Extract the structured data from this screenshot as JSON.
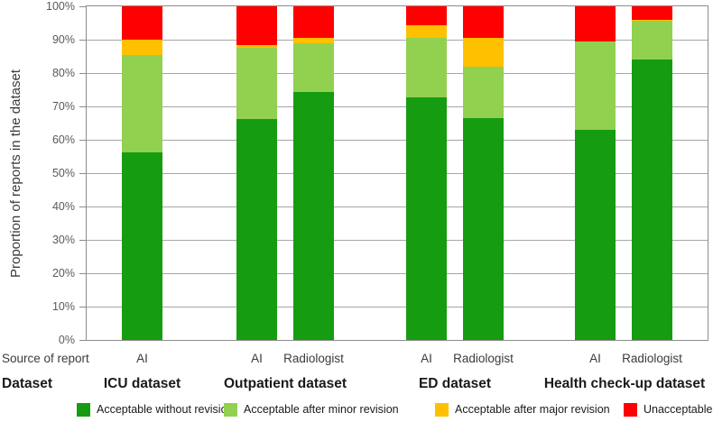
{
  "chart_data": {
    "type": "bar",
    "stacked": true,
    "title": "",
    "ylabel": "Proportion of reports in the dataset",
    "ylim": [
      0,
      100
    ],
    "ytick_labels": [
      "0%",
      "10%",
      "20%",
      "30%",
      "40%",
      "50%",
      "60%",
      "70%",
      "80%",
      "90%",
      "100%"
    ],
    "grid": true,
    "legend_position": "bottom",
    "row_headers": {
      "source": "Source of report",
      "dataset": "Dataset"
    },
    "bars": [
      {
        "dataset": "ICU dataset",
        "source": "AI"
      },
      {
        "dataset": "Outpatient dataset",
        "source": "AI"
      },
      {
        "dataset": "Outpatient dataset",
        "source": "Radiologist"
      },
      {
        "dataset": "ED dataset",
        "source": "AI"
      },
      {
        "dataset": "ED dataset",
        "source": "Radiologist"
      },
      {
        "dataset": "Health check-up dataset",
        "source": "AI"
      },
      {
        "dataset": "Health check-up dataset",
        "source": "Radiologist"
      }
    ],
    "groups": [
      {
        "label": "ICU dataset",
        "bar_indices": [
          0
        ]
      },
      {
        "label": "Outpatient dataset",
        "bar_indices": [
          1,
          2
        ]
      },
      {
        "label": "ED dataset",
        "bar_indices": [
          3,
          4
        ]
      },
      {
        "label": "Health check-up dataset",
        "bar_indices": [
          5,
          6
        ]
      }
    ],
    "series": [
      {
        "name": "Acceptable without revision",
        "color": "#169c10",
        "values": [
          56.2,
          66.2,
          74.2,
          72.6,
          66.4,
          62.9,
          84.1
        ]
      },
      {
        "name": "Acceptable after minor revision",
        "color": "#92d050",
        "values": [
          29.2,
          21.3,
          14.6,
          18.0,
          15.6,
          26.5,
          11.5
        ]
      },
      {
        "name": "Acceptable after major revision",
        "color": "#ffc000",
        "values": [
          4.6,
          0.8,
          1.8,
          3.6,
          8.6,
          0.0,
          0.4
        ]
      },
      {
        "name": "Unacceptable",
        "color": "#ff0000",
        "values": [
          10.0,
          11.7,
          9.4,
          5.8,
          9.4,
          10.6,
          4.0
        ]
      }
    ]
  }
}
